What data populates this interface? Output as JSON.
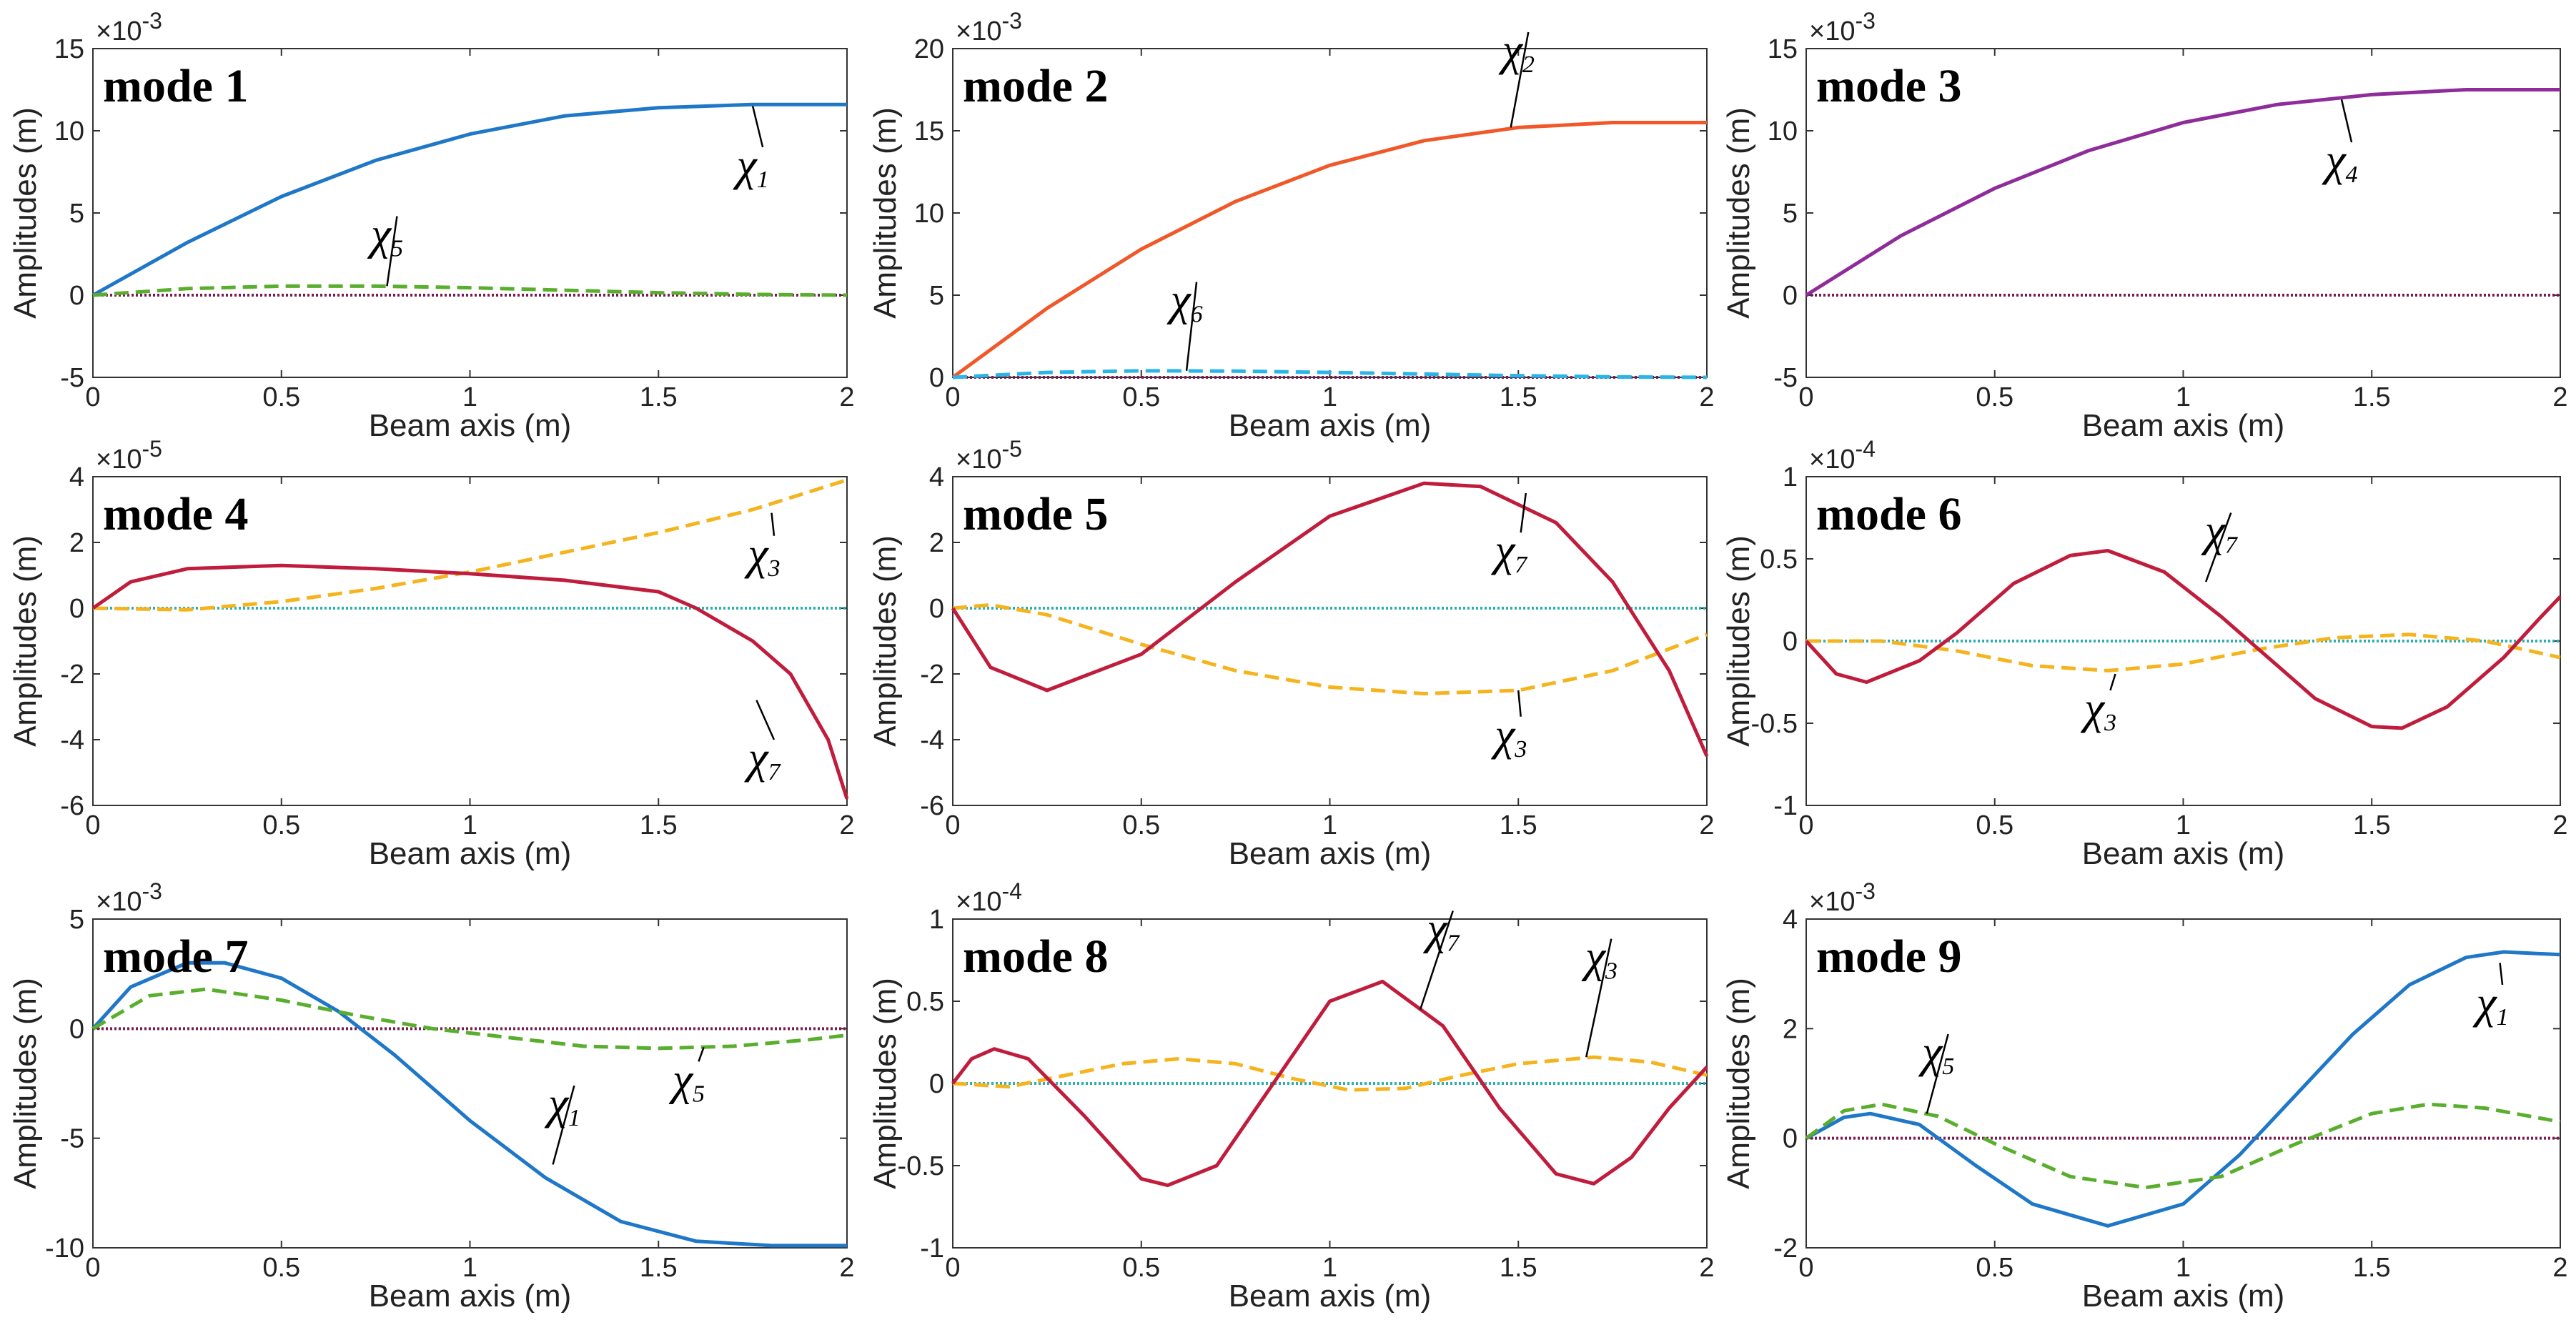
{
  "figure": {
    "xlabel": "Beam axis (m)",
    "ylabel": "Amplitudes (m)",
    "legend_note": "solid = primary component, dashed = secondary component, dotted = near-zero components"
  },
  "colors": {
    "chi1": "#1f77c8",
    "chi2": "#f0582a",
    "chi3": "#f5b41e",
    "chi4": "#8e2d9a",
    "chi5": "#5aae2e",
    "chi6": "#2ab4e8",
    "chi7": "#c01c3c",
    "zero_maroon": "#7a1c50",
    "zero_teal": "#2ab0b0"
  },
  "chart_data": [
    {
      "type": "line",
      "title": "mode 1",
      "xlim": [
        0,
        2
      ],
      "ylim": [
        -5,
        15
      ],
      "yticks": [
        "-5",
        "0",
        "5",
        "10",
        "15"
      ],
      "xticks": [
        "0",
        "0.5",
        "1",
        "1.5",
        "2"
      ],
      "exponent": "×10",
      "exponent_power": "-3",
      "zero_color": "#7a1c50",
      "series": [
        {
          "name": "χ1",
          "color": "#1f77c8",
          "style": "solid",
          "x": [
            0,
            0.25,
            0.5,
            0.75,
            1.0,
            1.25,
            1.5,
            1.75,
            2.0
          ],
          "y": [
            0,
            3.2,
            6.0,
            8.2,
            9.8,
            10.9,
            11.4,
            11.6,
            11.6
          ]
        },
        {
          "name": "χ5",
          "color": "#5aae2e",
          "style": "dashed",
          "x": [
            0,
            0.25,
            0.5,
            0.75,
            1.0,
            1.25,
            1.5,
            1.75,
            2.0
          ],
          "y": [
            0,
            0.4,
            0.55,
            0.55,
            0.45,
            0.3,
            0.15,
            0.05,
            0
          ]
        }
      ],
      "annotations": [
        {
          "base": "χ",
          "sub": "1",
          "x": 1.75,
          "y": 7.0,
          "px": 1.75,
          "py": 11.5
        },
        {
          "base": "χ",
          "sub": "5",
          "x": 0.78,
          "y": 2.8,
          "px": 0.78,
          "py": 0.55
        }
      ]
    },
    {
      "type": "line",
      "title": "mode 2",
      "xlim": [
        0,
        2
      ],
      "ylim": [
        0,
        20
      ],
      "yticks": [
        "0",
        "5",
        "10",
        "15",
        "20"
      ],
      "xticks": [
        "0",
        "0.5",
        "1",
        "1.5",
        "2"
      ],
      "exponent": "×10",
      "exponent_power": "-3",
      "zero_color": "#7a1c50",
      "series": [
        {
          "name": "χ2",
          "color": "#f0582a",
          "style": "solid",
          "x": [
            0,
            0.25,
            0.5,
            0.75,
            1.0,
            1.25,
            1.5,
            1.75,
            2.0
          ],
          "y": [
            0,
            4.2,
            7.8,
            10.7,
            12.9,
            14.4,
            15.2,
            15.5,
            15.5
          ]
        },
        {
          "name": "χ6",
          "color": "#2ab4e8",
          "style": "dashed",
          "x": [
            0,
            0.25,
            0.5,
            0.75,
            1.0,
            1.25,
            1.5,
            1.75,
            2.0
          ],
          "y": [
            0,
            0.3,
            0.4,
            0.38,
            0.3,
            0.2,
            0.1,
            0.03,
            0
          ]
        }
      ],
      "annotations": [
        {
          "base": "χ",
          "sub": "2",
          "x": 1.5,
          "y": 19.0,
          "px": 1.48,
          "py": 15.2
        },
        {
          "base": "χ",
          "sub": "6",
          "x": 0.62,
          "y": 3.8,
          "px": 0.62,
          "py": 0.4
        }
      ]
    },
    {
      "type": "line",
      "title": "mode 3",
      "xlim": [
        0,
        2
      ],
      "ylim": [
        -5,
        15
      ],
      "yticks": [
        "-5",
        "0",
        "5",
        "10",
        "15"
      ],
      "xticks": [
        "0",
        "0.5",
        "1",
        "1.5",
        "2"
      ],
      "exponent": "×10",
      "exponent_power": "-3",
      "zero_color": "#7a1c50",
      "series": [
        {
          "name": "χ4",
          "color": "#8e2d9a",
          "style": "solid",
          "x": [
            0,
            0.25,
            0.5,
            0.75,
            1.0,
            1.25,
            1.5,
            1.75,
            2.0
          ],
          "y": [
            0,
            3.6,
            6.5,
            8.8,
            10.5,
            11.6,
            12.2,
            12.5,
            12.5
          ]
        }
      ],
      "annotations": [
        {
          "base": "χ",
          "sub": "4",
          "x": 1.42,
          "y": 7.3,
          "px": 1.42,
          "py": 11.9
        }
      ]
    },
    {
      "type": "line",
      "title": "mode 4",
      "xlim": [
        0,
        2
      ],
      "ylim": [
        -6,
        4
      ],
      "yticks": [
        "-6",
        "-4",
        "-2",
        "0",
        "2",
        "4"
      ],
      "xticks": [
        "0",
        "0.5",
        "1",
        "1.5",
        "2"
      ],
      "exponent": "×10",
      "exponent_power": "-5",
      "zero_color": "#2ab0b0",
      "series": [
        {
          "name": "χ3",
          "color": "#f5b41e",
          "style": "dashed",
          "x": [
            0,
            0.25,
            0.5,
            0.75,
            1.0,
            1.25,
            1.5,
            1.75,
            2.0
          ],
          "y": [
            0,
            -0.05,
            0.2,
            0.6,
            1.1,
            1.7,
            2.3,
            3.0,
            3.9
          ]
        },
        {
          "name": "χ7",
          "color": "#c01c3c",
          "style": "solid",
          "x": [
            0,
            0.1,
            0.25,
            0.5,
            0.75,
            1.0,
            1.25,
            1.5,
            1.6,
            1.75,
            1.85,
            1.95,
            2.0
          ],
          "y": [
            0,
            0.8,
            1.2,
            1.3,
            1.2,
            1.05,
            0.85,
            0.5,
            0.0,
            -1.0,
            -2.0,
            -4.0,
            -5.8
          ]
        }
      ],
      "annotations": [
        {
          "base": "χ",
          "sub": "3",
          "x": 1.78,
          "y": 1.2,
          "px": 1.8,
          "py": 2.9
        },
        {
          "base": "χ",
          "sub": "7",
          "x": 1.78,
          "y": -5.0,
          "px": 1.76,
          "py": -2.8
        }
      ]
    },
    {
      "type": "line",
      "title": "mode 5",
      "xlim": [
        0,
        2
      ],
      "ylim": [
        -6,
        4
      ],
      "yticks": [
        "-6",
        "-4",
        "-2",
        "0",
        "2",
        "4"
      ],
      "xticks": [
        "0",
        "0.5",
        "1",
        "1.5",
        "2"
      ],
      "exponent": "×10",
      "exponent_power": "-5",
      "zero_color": "#2ab0b0",
      "series": [
        {
          "name": "χ3",
          "color": "#f5b41e",
          "style": "dashed",
          "x": [
            0,
            0.1,
            0.25,
            0.5,
            0.75,
            1.0,
            1.25,
            1.5,
            1.75,
            2.0
          ],
          "y": [
            0,
            0.1,
            -0.2,
            -1.1,
            -1.9,
            -2.4,
            -2.6,
            -2.5,
            -1.9,
            -0.8
          ]
        },
        {
          "name": "χ7",
          "color": "#c01c3c",
          "style": "solid",
          "x": [
            0,
            0.1,
            0.25,
            0.5,
            0.75,
            1.0,
            1.25,
            1.4,
            1.6,
            1.75,
            1.9,
            2.0
          ],
          "y": [
            0,
            -1.8,
            -2.5,
            -1.4,
            0.8,
            2.8,
            3.8,
            3.7,
            2.6,
            0.8,
            -1.9,
            -4.5
          ]
        }
      ],
      "annotations": [
        {
          "base": "χ",
          "sub": "3",
          "x": 1.48,
          "y": -4.3,
          "px": 1.5,
          "py": -2.5
        },
        {
          "base": "χ",
          "sub": "7",
          "x": 1.48,
          "y": 1.3,
          "px": 1.52,
          "py": 3.5
        }
      ]
    },
    {
      "type": "line",
      "title": "mode 6",
      "xlim": [
        0,
        2
      ],
      "ylim": [
        -1,
        1
      ],
      "yticks": [
        "-1",
        "-0.5",
        "0",
        "0.5",
        "1"
      ],
      "xticks": [
        "0",
        "0.5",
        "1",
        "1.5",
        "2"
      ],
      "exponent": "×10",
      "exponent_power": "-4",
      "zero_color": "#2ab0b0",
      "series": [
        {
          "name": "χ3",
          "color": "#f5b41e",
          "style": "dashed",
          "x": [
            0,
            0.2,
            0.4,
            0.6,
            0.8,
            1.0,
            1.2,
            1.4,
            1.6,
            1.8,
            2.0
          ],
          "y": [
            0,
            0.0,
            -0.06,
            -0.15,
            -0.18,
            -0.14,
            -0.05,
            0.02,
            0.04,
            0.0,
            -0.1
          ]
        },
        {
          "name": "χ7",
          "color": "#c01c3c",
          "style": "solid",
          "x": [
            0,
            0.08,
            0.16,
            0.3,
            0.4,
            0.55,
            0.7,
            0.8,
            0.95,
            1.1,
            1.2,
            1.35,
            1.5,
            1.58,
            1.7,
            1.85,
            1.95,
            2.0
          ],
          "y": [
            0,
            -0.2,
            -0.25,
            -0.12,
            0.05,
            0.35,
            0.52,
            0.55,
            0.42,
            0.15,
            -0.05,
            -0.35,
            -0.52,
            -0.53,
            -0.4,
            -0.1,
            0.15,
            0.27
          ]
        }
      ],
      "annotations": [
        {
          "base": "χ",
          "sub": "3",
          "x": 0.78,
          "y": -0.5,
          "px": 0.82,
          "py": -0.2
        },
        {
          "base": "χ",
          "sub": "7",
          "x": 1.1,
          "y": 0.58,
          "px": 1.06,
          "py": 0.36
        }
      ]
    },
    {
      "type": "line",
      "title": "mode 7",
      "xlim": [
        0,
        2
      ],
      "ylim": [
        -10,
        5
      ],
      "yticks": [
        "-10",
        "-5",
        "0",
        "5"
      ],
      "xticks": [
        "0",
        "0.5",
        "1",
        "1.5",
        "2"
      ],
      "exponent": "×10",
      "exponent_power": "-3",
      "zero_color": "#7a1c50",
      "series": [
        {
          "name": "χ1",
          "color": "#1f77c8",
          "style": "solid",
          "x": [
            0,
            0.1,
            0.25,
            0.35,
            0.5,
            0.65,
            0.8,
            1.0,
            1.2,
            1.4,
            1.6,
            1.8,
            1.9,
            2.0
          ],
          "y": [
            0,
            1.9,
            3.0,
            3.0,
            2.3,
            0.8,
            -1.2,
            -4.2,
            -6.8,
            -8.8,
            -9.7,
            -9.9,
            -9.9,
            -9.9
          ]
        },
        {
          "name": "χ5",
          "color": "#5aae2e",
          "style": "dashed",
          "x": [
            0,
            0.15,
            0.3,
            0.5,
            0.7,
            0.9,
            1.1,
            1.3,
            1.5,
            1.7,
            1.9,
            2.0
          ],
          "y": [
            0,
            1.5,
            1.8,
            1.3,
            0.6,
            0.0,
            -0.4,
            -0.8,
            -0.9,
            -0.8,
            -0.5,
            -0.3
          ]
        }
      ],
      "annotations": [
        {
          "base": "χ",
          "sub": "1",
          "x": 1.25,
          "y": -4.1,
          "px": 1.22,
          "py": -6.2
        },
        {
          "base": "χ",
          "sub": "5",
          "x": 1.58,
          "y": -3.0,
          "px": 1.62,
          "py": -0.85
        }
      ]
    },
    {
      "type": "line",
      "title": "mode 8",
      "xlim": [
        0,
        2
      ],
      "ylim": [
        -1,
        1
      ],
      "yticks": [
        "-1",
        "-0.5",
        "0",
        "0.5",
        "1"
      ],
      "xticks": [
        "0",
        "0.5",
        "1",
        "1.5",
        "2"
      ],
      "exponent": "×10",
      "exponent_power": "-4",
      "zero_color": "#2ab0b0",
      "series": [
        {
          "name": "χ3",
          "color": "#f5b41e",
          "style": "dashed",
          "x": [
            0,
            0.15,
            0.3,
            0.45,
            0.6,
            0.75,
            0.9,
            1.05,
            1.2,
            1.35,
            1.5,
            1.7,
            1.85,
            2.0
          ],
          "y": [
            0,
            -0.02,
            0.05,
            0.12,
            0.15,
            0.12,
            0.03,
            -0.04,
            -0.03,
            0.05,
            0.12,
            0.16,
            0.13,
            0.05
          ]
        },
        {
          "name": "χ7",
          "color": "#c01c3c",
          "style": "solid",
          "x": [
            0,
            0.05,
            0.11,
            0.2,
            0.35,
            0.5,
            0.57,
            0.7,
            0.85,
            1.0,
            1.14,
            1.3,
            1.45,
            1.6,
            1.7,
            1.8,
            1.9,
            2.0
          ],
          "y": [
            0,
            0.15,
            0.21,
            0.15,
            -0.2,
            -0.58,
            -0.62,
            -0.5,
            0.0,
            0.5,
            0.62,
            0.35,
            -0.15,
            -0.55,
            -0.61,
            -0.45,
            -0.15,
            0.1
          ]
        }
      ],
      "annotations": [
        {
          "base": "χ",
          "sub": "3",
          "x": 1.72,
          "y": 0.68,
          "px": 1.68,
          "py": 0.16
        },
        {
          "base": "χ",
          "sub": "7",
          "x": 1.3,
          "y": 0.85,
          "px": 1.24,
          "py": 0.45
        }
      ]
    },
    {
      "type": "line",
      "title": "mode 9",
      "xlim": [
        0,
        2
      ],
      "ylim": [
        -2,
        4
      ],
      "yticks": [
        "-2",
        "0",
        "2",
        "4"
      ],
      "xticks": [
        "0",
        "0.5",
        "1",
        "1.5",
        "2"
      ],
      "exponent": "×10",
      "exponent_power": "-3",
      "zero_color": "#7a1c50",
      "series": [
        {
          "name": "χ1",
          "color": "#1f77c8",
          "style": "solid",
          "x": [
            0,
            0.1,
            0.17,
            0.3,
            0.45,
            0.6,
            0.8,
            1.0,
            1.15,
            1.3,
            1.45,
            1.6,
            1.75,
            1.85,
            2.0
          ],
          "y": [
            0,
            0.38,
            0.45,
            0.25,
            -0.5,
            -1.2,
            -1.6,
            -1.2,
            -0.3,
            0.8,
            1.9,
            2.8,
            3.3,
            3.4,
            3.35
          ]
        },
        {
          "name": "χ5",
          "color": "#5aae2e",
          "style": "dashed",
          "x": [
            0,
            0.1,
            0.2,
            0.35,
            0.5,
            0.7,
            0.9,
            1.1,
            1.3,
            1.5,
            1.65,
            1.8,
            2.0
          ],
          "y": [
            0,
            0.5,
            0.62,
            0.4,
            -0.1,
            -0.7,
            -0.9,
            -0.7,
            -0.1,
            0.45,
            0.62,
            0.55,
            0.3
          ]
        }
      ],
      "annotations": [
        {
          "base": "χ",
          "sub": "1",
          "x": 1.82,
          "y": 2.2,
          "px": 1.84,
          "py": 3.2
        },
        {
          "base": "χ",
          "sub": "5",
          "x": 0.35,
          "y": 1.3,
          "px": 0.32,
          "py": 0.45
        }
      ]
    }
  ]
}
